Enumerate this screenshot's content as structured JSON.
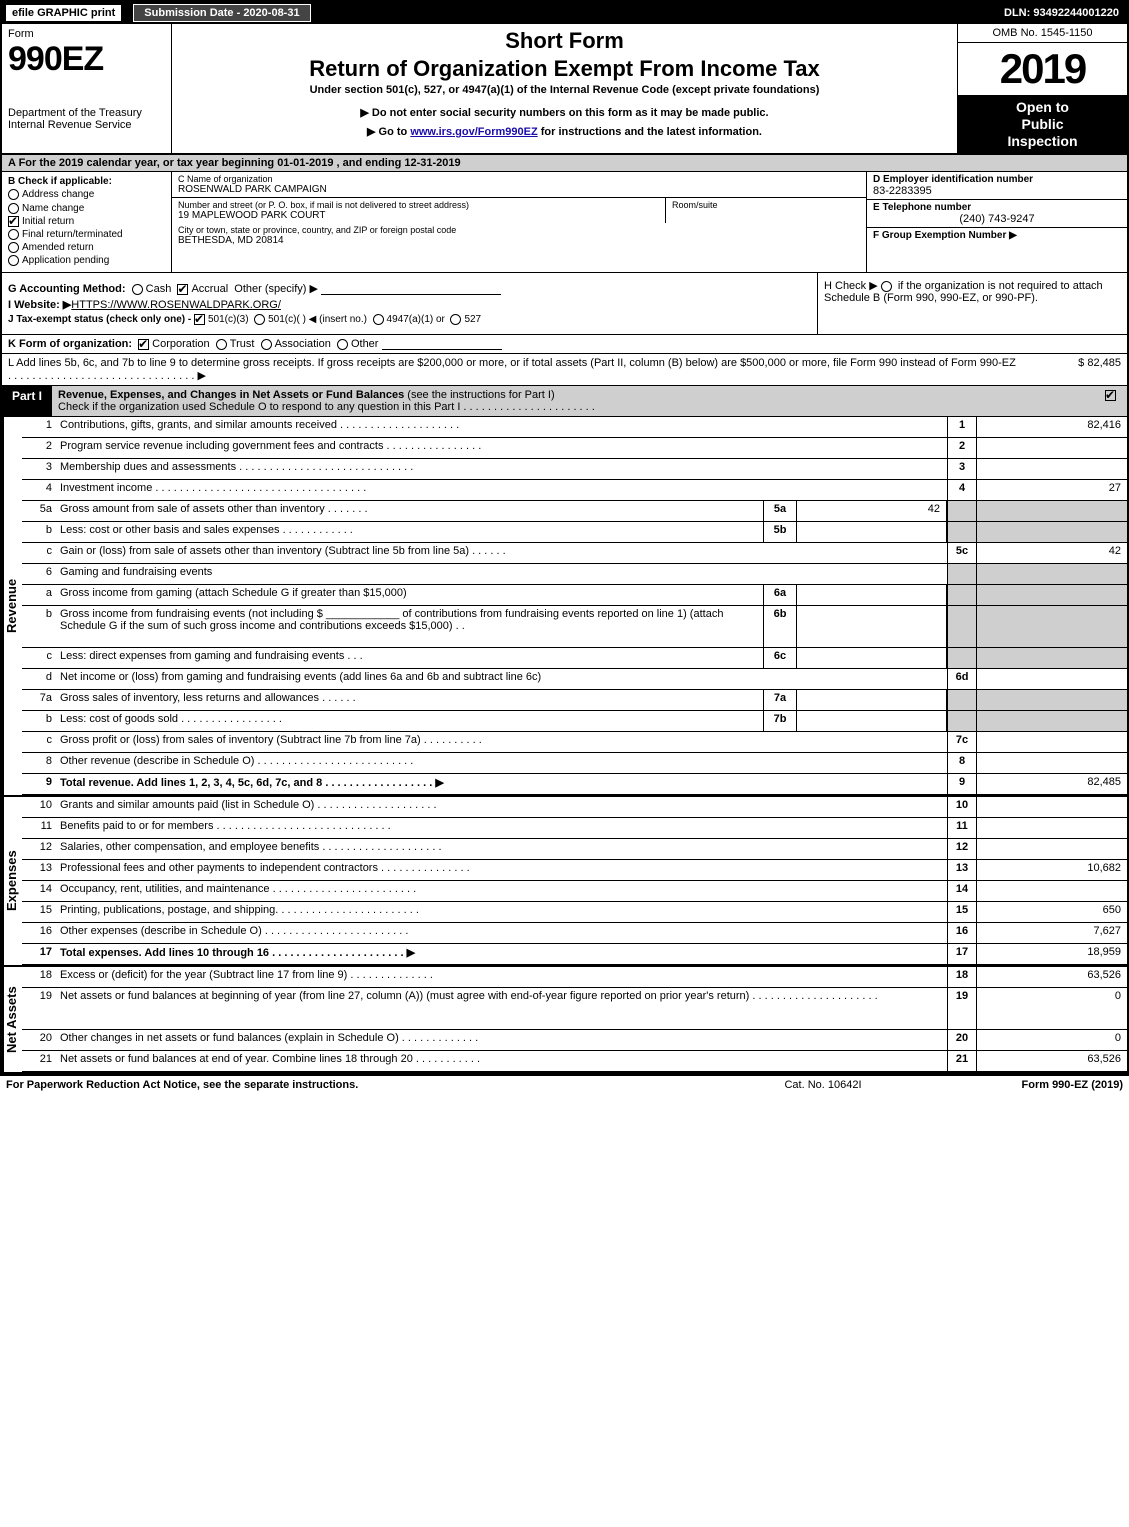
{
  "topbar": {
    "efile": "efile GRAPHIC print",
    "submission_label": "Submission Date - 2020-08-31",
    "dln": "DLN: 93492244001220"
  },
  "header": {
    "form_label": "Form",
    "form_number": "990EZ",
    "dept1": "Department of the Treasury",
    "dept2": "Internal Revenue Service",
    "short_form": "Short Form",
    "title": "Return of Organization Exempt From Income Tax",
    "subtitle": "Under section 501(c), 527, or 4947(a)(1) of the Internal Revenue Code (except private foundations)",
    "note1": "▶ Do not enter social security numbers on this form as it may be made public.",
    "note2_pre": "▶ Go to ",
    "note2_link": "www.irs.gov/Form990EZ",
    "note2_post": " for instructions and the latest information.",
    "omb": "OMB No. 1545-1150",
    "year": "2019",
    "inspect1": "Open to",
    "inspect2": "Public",
    "inspect3": "Inspection"
  },
  "rowA": "A  For the 2019 calendar year, or tax year beginning 01-01-2019 , and ending 12-31-2019",
  "B": {
    "head": "B  Check if applicable:",
    "opts": [
      "Address change",
      "Name change",
      "Initial return",
      "Final return/terminated",
      "Amended return",
      "Application pending"
    ],
    "checked_index": 2
  },
  "C": {
    "name_lab": "C Name of organization",
    "name": "ROSENWALD PARK CAMPAIGN",
    "addr_lab": "Number and street (or P. O. box, if mail is not delivered to street address)",
    "addr": "19 MAPLEWOOD PARK COURT",
    "room_lab": "Room/suite",
    "city_lab": "City or town, state or province, country, and ZIP or foreign postal code",
    "city": "BETHESDA, MD  20814"
  },
  "D": {
    "ein_lab": "D Employer identification number",
    "ein": "83-2283395",
    "tel_lab": "E Telephone number",
    "tel": "(240) 743-9247",
    "grp_lab": "F Group Exemption Number   ▶"
  },
  "G": {
    "label": "G Accounting Method:",
    "cash": "Cash",
    "accrual": "Accrual",
    "other": "Other (specify) ▶",
    "accrual_checked": true
  },
  "H": {
    "text1": "H  Check ▶",
    "text2": "if the organization is not required to attach Schedule B (Form 990, 990-EZ, or 990-PF).",
    "h_checked": false
  },
  "I": {
    "label": "I Website: ▶",
    "value": "HTTPS://WWW.ROSENWALDPARK.ORG/"
  },
  "J": {
    "label": "J Tax-exempt status (check only one) - ",
    "o1": "501(c)(3)",
    "o2": "501(c)( )  ◀ (insert no.)",
    "o3": "4947(a)(1) or",
    "o4": "527",
    "o1_checked": true
  },
  "K": {
    "label": "K Form of organization:",
    "opts": [
      "Corporation",
      "Trust",
      "Association",
      "Other"
    ],
    "checked_index": 0
  },
  "L": {
    "text": "L Add lines 5b, 6c, and 7b to line 9 to determine gross receipts. If gross receipts are $200,000 or more, or if total assets (Part II, column (B) below) are $500,000 or more, file Form 990 instead of Form 990-EZ . . . . . . . . . . . . . . . . . . . . . . . . . . . . . . .  ▶",
    "amount": "$ 82,485"
  },
  "partI": {
    "label": "Part I",
    "title": "Revenue, Expenses, and Changes in Net Assets or Fund Balances",
    "title_note": " (see the instructions for Part I)",
    "check_note": "Check if the organization used Schedule O to respond to any question in this Part I . . . . . . . . . . . . . . . . . . . . . .",
    "check_on": true
  },
  "revenue": {
    "label": "Revenue",
    "rows": [
      {
        "no": "1",
        "desc": "Contributions, gifts, grants, and similar amounts received . . . . . . . . . . . . . . . . . . . .",
        "cno": "1",
        "amt": "82,416"
      },
      {
        "no": "2",
        "desc": "Program service revenue including government fees and contracts . . . . . . . . . . . . . . . .",
        "cno": "2",
        "amt": ""
      },
      {
        "no": "3",
        "desc": "Membership dues and assessments . . . . . . . . . . . . . . . . . . . . . . . . . . . . .",
        "cno": "3",
        "amt": ""
      },
      {
        "no": "4",
        "desc": "Investment income . . . . . . . . . . . . . . . . . . . . . . . . . . . . . . . . . . .",
        "cno": "4",
        "amt": "27"
      },
      {
        "no": "5a",
        "desc": "Gross amount from sale of assets other than inventory . . . . . . .",
        "subno": "5a",
        "subamt": "42",
        "cno": "",
        "amt": "",
        "grey": true
      },
      {
        "no": "b",
        "desc": "Less: cost or other basis and sales expenses . . . . . . . . . . . .",
        "subno": "5b",
        "subamt": "",
        "cno": "",
        "amt": "",
        "grey": true
      },
      {
        "no": "c",
        "desc": "Gain or (loss) from sale of assets other than inventory (Subtract line 5b from line 5a) . . . . . .",
        "cno": "5c",
        "amt": "42"
      },
      {
        "no": "6",
        "desc": "Gaming and fundraising events",
        "cno": "",
        "amt": "",
        "grey": true
      },
      {
        "no": "a",
        "desc": "Gross income from gaming (attach Schedule G if greater than $15,000)",
        "subno": "6a",
        "subamt": "",
        "cno": "",
        "amt": "",
        "grey": true
      },
      {
        "no": "b",
        "desc": "Gross income from fundraising events (not including $ ____________ of contributions from fundraising events reported on line 1) (attach Schedule G if the sum of such gross income and contributions exceeds $15,000)  . .",
        "subno": "6b",
        "subamt": "",
        "cno": "",
        "amt": "",
        "grey": true,
        "tall": true
      },
      {
        "no": "c",
        "desc": "Less: direct expenses from gaming and fundraising events   . . .",
        "subno": "6c",
        "subamt": "",
        "cno": "",
        "amt": "",
        "grey": true
      },
      {
        "no": "d",
        "desc": "Net income or (loss) from gaming and fundraising events (add lines 6a and 6b and subtract line 6c)",
        "cno": "6d",
        "amt": ""
      },
      {
        "no": "7a",
        "desc": "Gross sales of inventory, less returns and allowances . . . . . .",
        "subno": "7a",
        "subamt": "",
        "cno": "",
        "amt": "",
        "grey": true
      },
      {
        "no": "b",
        "desc": "Less: cost of goods sold  . . . . . . . . . . . . . . . . .",
        "subno": "7b",
        "subamt": "",
        "cno": "",
        "amt": "",
        "grey": true
      },
      {
        "no": "c",
        "desc": "Gross profit or (loss) from sales of inventory (Subtract line 7b from line 7a) . . . . . . . . . .",
        "cno": "7c",
        "amt": ""
      },
      {
        "no": "8",
        "desc": "Other revenue (describe in Schedule O) . . . . . . . . . . . . . . . . . . . . . . . . . .",
        "cno": "8",
        "amt": ""
      },
      {
        "no": "9",
        "desc": "Total revenue. Add lines 1, 2, 3, 4, 5c, 6d, 7c, and 8  . . . . . . . . . . . . . . . . . .   ▶",
        "cno": "9",
        "amt": "82,485",
        "bold": true
      }
    ]
  },
  "expenses": {
    "label": "Expenses",
    "rows": [
      {
        "no": "10",
        "desc": "Grants and similar amounts paid (list in Schedule O) . . . . . . . . . . . . . . . . . . . .",
        "cno": "10",
        "amt": ""
      },
      {
        "no": "11",
        "desc": "Benefits paid to or for members . . . . . . . . . . . . . . . . . . . . . . . . . . . . .",
        "cno": "11",
        "amt": ""
      },
      {
        "no": "12",
        "desc": "Salaries, other compensation, and employee benefits . . . . . . . . . . . . . . . . . . . .",
        "cno": "12",
        "amt": ""
      },
      {
        "no": "13",
        "desc": "Professional fees and other payments to independent contractors . . . . . . . . . . . . . . .",
        "cno": "13",
        "amt": "10,682"
      },
      {
        "no": "14",
        "desc": "Occupancy, rent, utilities, and maintenance . . . . . . . . . . . . . . . . . . . . . . . .",
        "cno": "14",
        "amt": ""
      },
      {
        "no": "15",
        "desc": "Printing, publications, postage, and shipping. . . . . . . . . . . . . . . . . . . . . . . .",
        "cno": "15",
        "amt": "650"
      },
      {
        "no": "16",
        "desc": "Other expenses (describe in Schedule O)  . . . . . . . . . . . . . . . . . . . . . . . .",
        "cno": "16",
        "amt": "7,627"
      },
      {
        "no": "17",
        "desc": "Total expenses. Add lines 10 through 16  . . . . . . . . . . . . . . . . . . . . . .   ▶",
        "cno": "17",
        "amt": "18,959",
        "bold": true
      }
    ]
  },
  "netassets": {
    "label": "Net Assets",
    "rows": [
      {
        "no": "18",
        "desc": "Excess or (deficit) for the year (Subtract line 17 from line 9)  . . . . . . . . . . . . . .",
        "cno": "18",
        "amt": "63,526"
      },
      {
        "no": "19",
        "desc": "Net assets or fund balances at beginning of year (from line 27, column (A)) (must agree with end-of-year figure reported on prior year's return) . . . . . . . . . . . . . . . . . . . . .",
        "cno": "19",
        "amt": "0",
        "tall": true
      },
      {
        "no": "20",
        "desc": "Other changes in net assets or fund balances (explain in Schedule O) . . . . . . . . . . . . .",
        "cno": "20",
        "amt": "0"
      },
      {
        "no": "21",
        "desc": "Net assets or fund balances at end of year. Combine lines 18 through 20 . . . . . . . . . . .",
        "cno": "21",
        "amt": "63,526"
      }
    ]
  },
  "footer": {
    "left": "For Paperwork Reduction Act Notice, see the separate instructions.",
    "center": "Cat. No. 10642I",
    "right_pre": "Form ",
    "right_bold": "990-EZ",
    "right_post": " (2019)"
  },
  "colors": {
    "black": "#000000",
    "grey": "#cfcfcf",
    "dark_grey": "#444444",
    "link": "#1a0dab",
    "white": "#ffffff"
  }
}
